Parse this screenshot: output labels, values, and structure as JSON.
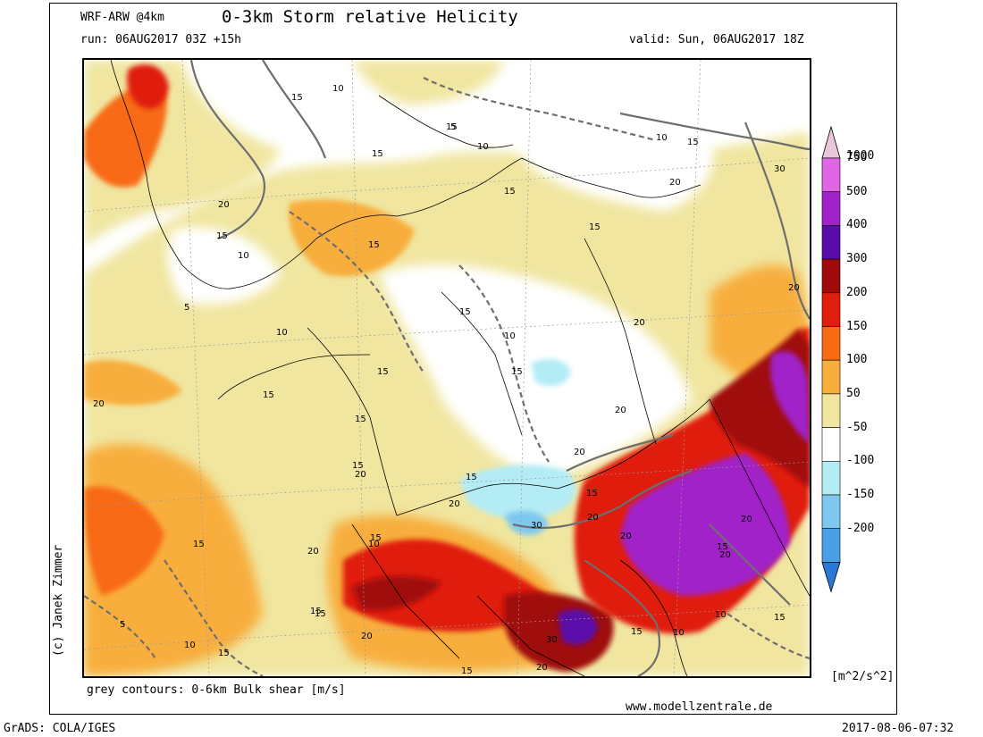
{
  "header": {
    "model": "WRF-ARW @4km",
    "title": "0-3km Storm relative Helicity",
    "run": "run: 06AUG2017 03Z +15h",
    "valid": "valid: Sun, 06AUG2017 18Z"
  },
  "footer": {
    "contours_note": "grey contours: 0-6km Bulk shear [m/s]",
    "website": "www.modellzentrale.de",
    "software": "GrADS: COLA/IGES",
    "timestamp": "2017-08-06-07:32",
    "credit": "(c) Janek Zimmer"
  },
  "legend": {
    "unit": "[m^2/s^2]",
    "entries": [
      {
        "label": "1000",
        "color": "#e8c8d8"
      },
      {
        "label": "750",
        "color": "#e066e6"
      },
      {
        "label": "500",
        "color": "#a022c8"
      },
      {
        "label": "400",
        "color": "#5a0ca8"
      },
      {
        "label": "300",
        "color": "#a00a0a"
      },
      {
        "label": "200",
        "color": "#e01e0e"
      },
      {
        "label": "150",
        "color": "#f86a14"
      },
      {
        "label": "100",
        "color": "#f8ae3c"
      },
      {
        "label": "50",
        "color": "#f0e6a0"
      },
      {
        "label": "-50",
        "color": "#ffffff"
      },
      {
        "label": "-100",
        "color": "#b4ecf6"
      },
      {
        "label": "-150",
        "color": "#7ec8f0"
      },
      {
        "label": "-200",
        "color": "#4aa0e6"
      }
    ],
    "low_end_color": "#2c78d8"
  },
  "contour_labels": [
    "15",
    "10",
    "5",
    "20",
    "30"
  ],
  "colors": {
    "yellow": "#f0e6a0",
    "lightorange": "#f8ae3c",
    "orange": "#f86a14",
    "red": "#e01e0e",
    "darkred": "#a00a0a",
    "purple": "#a022c8",
    "violet": "#5a0ca8",
    "lightblue": "#b4ecf6",
    "blue": "#7ec8f0",
    "grey_contour": "#6e6e6e",
    "border_line": "#000000"
  }
}
